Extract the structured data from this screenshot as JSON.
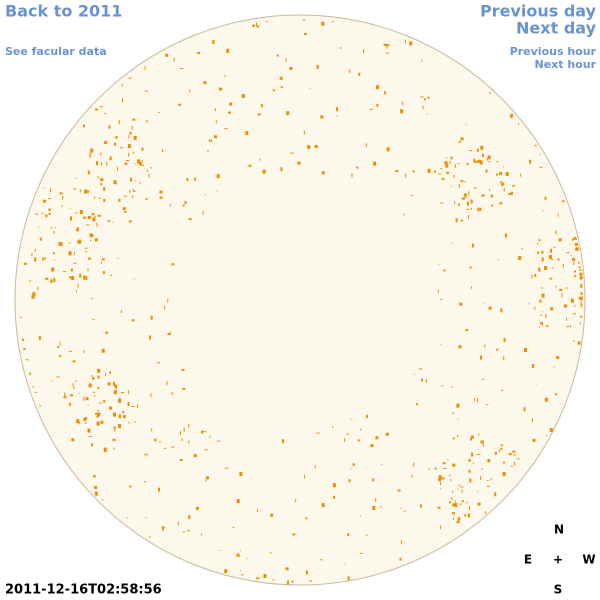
{
  "header": {
    "back": "Back to 2011",
    "facular": "See facular data",
    "previous_day": "Previous day",
    "next_day": "Next day",
    "previous_hour": "Previous hour",
    "next_hour": "Next hour"
  },
  "timestamp": "2011-12-16T02:58:56",
  "compass": {
    "north": "N",
    "east": "E",
    "center": "+",
    "west": "W",
    "south": "S"
  }
}
